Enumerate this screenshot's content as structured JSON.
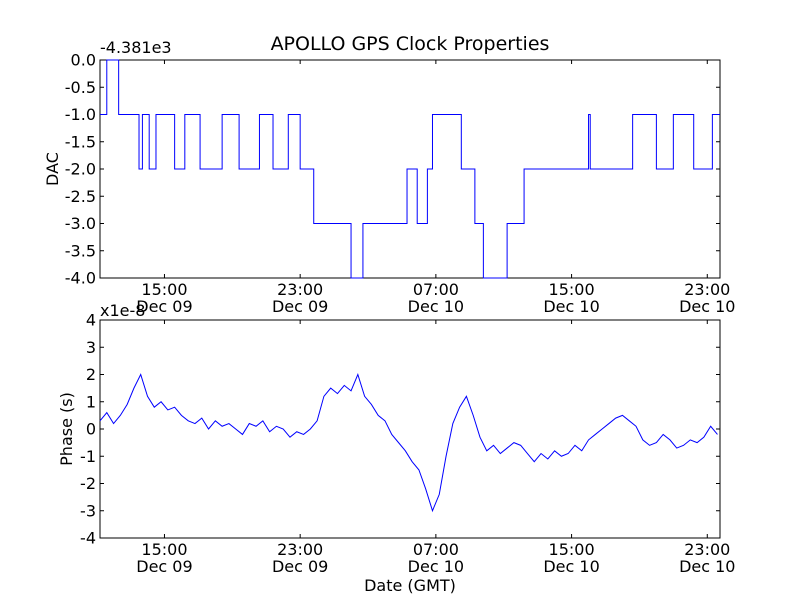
{
  "title": "APOLLO GPS Clock Properties",
  "chart_data": [
    {
      "type": "line",
      "title": "APOLLO GPS Clock Properties",
      "xlabel": "",
      "ylabel": "DAC",
      "offset_label": "-4.381e3",
      "x_unit": "hours since Dec 09 00:00 GMT",
      "xlim": [
        11.2,
        47.75
      ],
      "ylim": [
        -4.0,
        0.0
      ],
      "x_ticks": [
        {
          "x": 15,
          "time": "15:00",
          "date": "Dec 09"
        },
        {
          "x": 23,
          "time": "23:00",
          "date": "Dec 09"
        },
        {
          "x": 31,
          "time": "07:00",
          "date": "Dec 10"
        },
        {
          "x": 39,
          "time": "15:00",
          "date": "Dec 10"
        },
        {
          "x": 47,
          "time": "23:00",
          "date": "Dec 10"
        }
      ],
      "y_ticks": [
        "0.0",
        "-0.5",
        "-1.0",
        "-1.5",
        "-2.0",
        "-2.5",
        "-3.0",
        "-3.5",
        "-4.0"
      ],
      "y_tick_values": [
        0,
        -0.5,
        -1,
        -1.5,
        -2,
        -2.5,
        -3,
        -3.5,
        -4
      ],
      "color": "#0000ff",
      "series": [
        {
          "x": [
            11.2,
            11.6,
            11.6,
            12.3,
            12.3,
            13.5,
            13.5,
            13.7,
            13.7,
            14.1,
            14.1,
            14.5,
            14.5,
            15.6,
            15.6,
            16.2,
            16.2,
            17.1,
            17.1,
            18.4,
            18.4,
            19.4,
            19.4,
            20.6,
            20.6,
            21.4,
            21.4,
            22.3,
            22.3,
            23.0,
            23.0,
            23.8,
            23.8,
            26.0,
            26.0,
            26.7,
            26.7,
            29.3,
            29.3,
            29.9,
            29.9,
            30.5,
            30.5,
            30.8,
            30.8,
            32.5,
            32.5,
            33.3,
            33.3,
            33.8,
            33.8,
            35.2,
            35.2,
            36.2,
            36.2,
            38.0,
            38.0,
            40.0,
            40.0,
            40.1,
            40.1,
            42.6,
            42.6,
            44.0,
            44.0,
            45.0,
            45.0,
            46.2,
            46.2,
            47.3,
            47.3,
            47.75
          ],
          "y": [
            -1.0,
            -1.0,
            0.0,
            0.0,
            -1.0,
            -1.0,
            -2.0,
            -2.0,
            -1.0,
            -1.0,
            -2.0,
            -2.0,
            -1.0,
            -1.0,
            -2.0,
            -2.0,
            -1.0,
            -1.0,
            -2.0,
            -2.0,
            -1.0,
            -1.0,
            -2.0,
            -2.0,
            -1.0,
            -1.0,
            -2.0,
            -2.0,
            -1.0,
            -1.0,
            -2.0,
            -2.0,
            -3.0,
            -3.0,
            -4.0,
            -4.0,
            -3.0,
            -3.0,
            -2.0,
            -2.0,
            -3.0,
            -3.0,
            -2.0,
            -2.0,
            -1.0,
            -1.0,
            -2.0,
            -2.0,
            -3.0,
            -3.0,
            -4.0,
            -4.0,
            -3.0,
            -3.0,
            -2.0,
            -2.0,
            -2.0,
            -2.0,
            -1.0,
            -1.0,
            -2.0,
            -2.0,
            -1.0,
            -1.0,
            -2.0,
            -2.0,
            -1.0,
            -1.0,
            -2.0,
            -2.0,
            -1.0,
            -1.0
          ]
        }
      ]
    },
    {
      "type": "line",
      "xlabel": "Date (GMT)",
      "ylabel": "Phase (s)",
      "offset_label": "x1e-8",
      "x_unit": "hours since Dec 09 00:00 GMT",
      "xlim": [
        11.2,
        47.75
      ],
      "ylim": [
        -4,
        4
      ],
      "x_ticks": [
        {
          "x": 15,
          "time": "15:00",
          "date": "Dec 09"
        },
        {
          "x": 23,
          "time": "23:00",
          "date": "Dec 09"
        },
        {
          "x": 31,
          "time": "07:00",
          "date": "Dec 10"
        },
        {
          "x": 39,
          "time": "15:00",
          "date": "Dec 10"
        },
        {
          "x": 47,
          "time": "23:00",
          "date": "Dec 10"
        }
      ],
      "y_ticks": [
        "4",
        "3",
        "2",
        "1",
        "0",
        "-1",
        "-2",
        "-3",
        "-4"
      ],
      "y_tick_values": [
        4,
        3,
        2,
        1,
        0,
        -1,
        -2,
        -3,
        -4
      ],
      "color": "#0000ff",
      "series": [
        {
          "x": [
            11.2,
            11.6,
            12.0,
            12.4,
            12.8,
            13.2,
            13.6,
            14.0,
            14.4,
            14.8,
            15.2,
            15.6,
            16.0,
            16.4,
            16.8,
            17.2,
            17.6,
            18.0,
            18.4,
            18.8,
            19.2,
            19.6,
            20.0,
            20.4,
            20.8,
            21.2,
            21.6,
            22.0,
            22.4,
            22.8,
            23.2,
            23.6,
            24.0,
            24.4,
            24.8,
            25.2,
            25.6,
            26.0,
            26.4,
            26.8,
            27.2,
            27.6,
            28.0,
            28.4,
            28.8,
            29.2,
            29.6,
            30.0,
            30.4,
            30.8,
            31.2,
            31.6,
            32.0,
            32.4,
            32.8,
            33.2,
            33.6,
            34.0,
            34.4,
            34.8,
            35.2,
            35.6,
            36.0,
            36.4,
            36.8,
            37.2,
            37.6,
            38.0,
            38.4,
            38.8,
            39.2,
            39.6,
            40.0,
            40.4,
            40.8,
            41.2,
            41.6,
            42.0,
            42.4,
            42.8,
            43.2,
            43.6,
            44.0,
            44.4,
            44.8,
            45.2,
            45.6,
            46.0,
            46.4,
            46.8,
            47.2,
            47.6
          ],
          "y": [
            0.3,
            0.6,
            0.2,
            0.5,
            0.9,
            1.5,
            2.0,
            1.2,
            0.8,
            1.0,
            0.7,
            0.8,
            0.5,
            0.3,
            0.2,
            0.4,
            0.0,
            0.3,
            0.1,
            0.2,
            0.0,
            -0.2,
            0.2,
            0.1,
            0.3,
            -0.1,
            0.1,
            0.0,
            -0.3,
            -0.1,
            -0.2,
            0.0,
            0.3,
            1.2,
            1.5,
            1.3,
            1.6,
            1.4,
            2.0,
            1.2,
            0.9,
            0.5,
            0.3,
            -0.2,
            -0.5,
            -0.8,
            -1.2,
            -1.5,
            -2.2,
            -3.0,
            -2.4,
            -1.0,
            0.2,
            0.8,
            1.2,
            0.5,
            -0.3,
            -0.8,
            -0.6,
            -0.9,
            -0.7,
            -0.5,
            -0.6,
            -0.9,
            -1.2,
            -0.9,
            -1.1,
            -0.8,
            -1.0,
            -0.9,
            -0.6,
            -0.8,
            -0.4,
            -0.2,
            0.0,
            0.2,
            0.4,
            0.5,
            0.3,
            0.1,
            -0.4,
            -0.6,
            -0.5,
            -0.2,
            -0.4,
            -0.7,
            -0.6,
            -0.4,
            -0.5,
            -0.3,
            0.1,
            -0.2
          ]
        }
      ]
    }
  ]
}
